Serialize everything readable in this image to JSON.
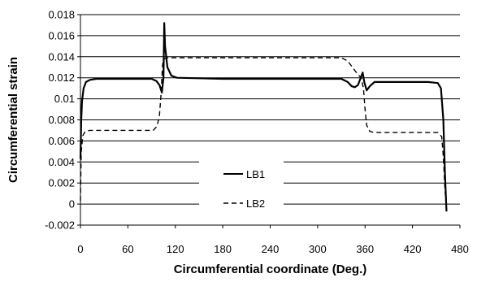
{
  "chart_data": {
    "type": "line",
    "title": "",
    "xlabel": "Circumferential coordinate (Deg.)",
    "ylabel": "Circumferential strain",
    "xlim": [
      0,
      480
    ],
    "ylim": [
      -0.002,
      0.018
    ],
    "xticks": [
      0,
      60,
      120,
      180,
      240,
      300,
      360,
      420,
      480
    ],
    "xtick_labels": [
      "0",
      "60",
      "120",
      "180",
      "240",
      "300",
      "360",
      "420",
      "480"
    ],
    "yticks": [
      -0.002,
      0,
      0.002,
      0.004,
      0.006,
      0.008,
      0.01,
      0.012,
      0.014,
      0.016,
      0.018
    ],
    "ytick_labels": [
      "-0.002",
      "0",
      "0.002",
      "0.004",
      "0.006",
      "0.008",
      "0.01",
      "0.012",
      "0.014",
      "0.016",
      "0.018"
    ],
    "grid": "horizontal",
    "legend": "center",
    "series": [
      {
        "name": "LB1",
        "style": "solid",
        "color": "#000000",
        "points": [
          [
            0,
            0.0043
          ],
          [
            1,
            0.008
          ],
          [
            2,
            0.0098
          ],
          [
            4,
            0.011
          ],
          [
            7,
            0.0116
          ],
          [
            12,
            0.0118
          ],
          [
            20,
            0.0119
          ],
          [
            60,
            0.0119
          ],
          [
            90,
            0.0119
          ],
          [
            96,
            0.0117
          ],
          [
            100,
            0.0113
          ],
          [
            103,
            0.0106
          ],
          [
            105,
            0.012
          ],
          [
            106,
            0.0172
          ],
          [
            107,
            0.015
          ],
          [
            110,
            0.013
          ],
          [
            115,
            0.0122
          ],
          [
            122,
            0.012
          ],
          [
            180,
            0.0119
          ],
          [
            300,
            0.0119
          ],
          [
            330,
            0.0119
          ],
          [
            338,
            0.0116
          ],
          [
            343,
            0.0112
          ],
          [
            347,
            0.0111
          ],
          [
            351,
            0.0113
          ],
          [
            355,
            0.0121
          ],
          [
            357,
            0.0125
          ],
          [
            359,
            0.0116
          ],
          [
            362,
            0.0108
          ],
          [
            366,
            0.0112
          ],
          [
            372,
            0.0116
          ],
          [
            400,
            0.0116
          ],
          [
            440,
            0.0116
          ],
          [
            452,
            0.0115
          ],
          [
            456,
            0.011
          ],
          [
            459,
            0.008
          ],
          [
            461,
            0.003
          ],
          [
            463,
            -0.0007
          ]
        ]
      },
      {
        "name": "LB2",
        "style": "dashed",
        "color": "#000000",
        "points": [
          [
            0,
            0.0003
          ],
          [
            1,
            0.005
          ],
          [
            3,
            0.0065
          ],
          [
            6,
            0.0069
          ],
          [
            12,
            0.007
          ],
          [
            60,
            0.007
          ],
          [
            92,
            0.007
          ],
          [
            97,
            0.0074
          ],
          [
            100,
            0.0085
          ],
          [
            102,
            0.0105
          ],
          [
            103,
            0.012
          ],
          [
            104,
            0.0133
          ],
          [
            106,
            0.0138
          ],
          [
            110,
            0.0139
          ],
          [
            180,
            0.0139
          ],
          [
            300,
            0.0139
          ],
          [
            330,
            0.0139
          ],
          [
            338,
            0.0136
          ],
          [
            344,
            0.013
          ],
          [
            350,
            0.0124
          ],
          [
            355,
            0.012
          ],
          [
            358,
            0.011
          ],
          [
            360,
            0.009
          ],
          [
            362,
            0.0075
          ],
          [
            366,
            0.0069
          ],
          [
            372,
            0.0068
          ],
          [
            420,
            0.0068
          ],
          [
            452,
            0.0068
          ],
          [
            457,
            0.0064
          ],
          [
            459,
            0.0045
          ],
          [
            461,
            0.0015
          ],
          [
            463,
            -0.0005
          ]
        ]
      }
    ]
  }
}
